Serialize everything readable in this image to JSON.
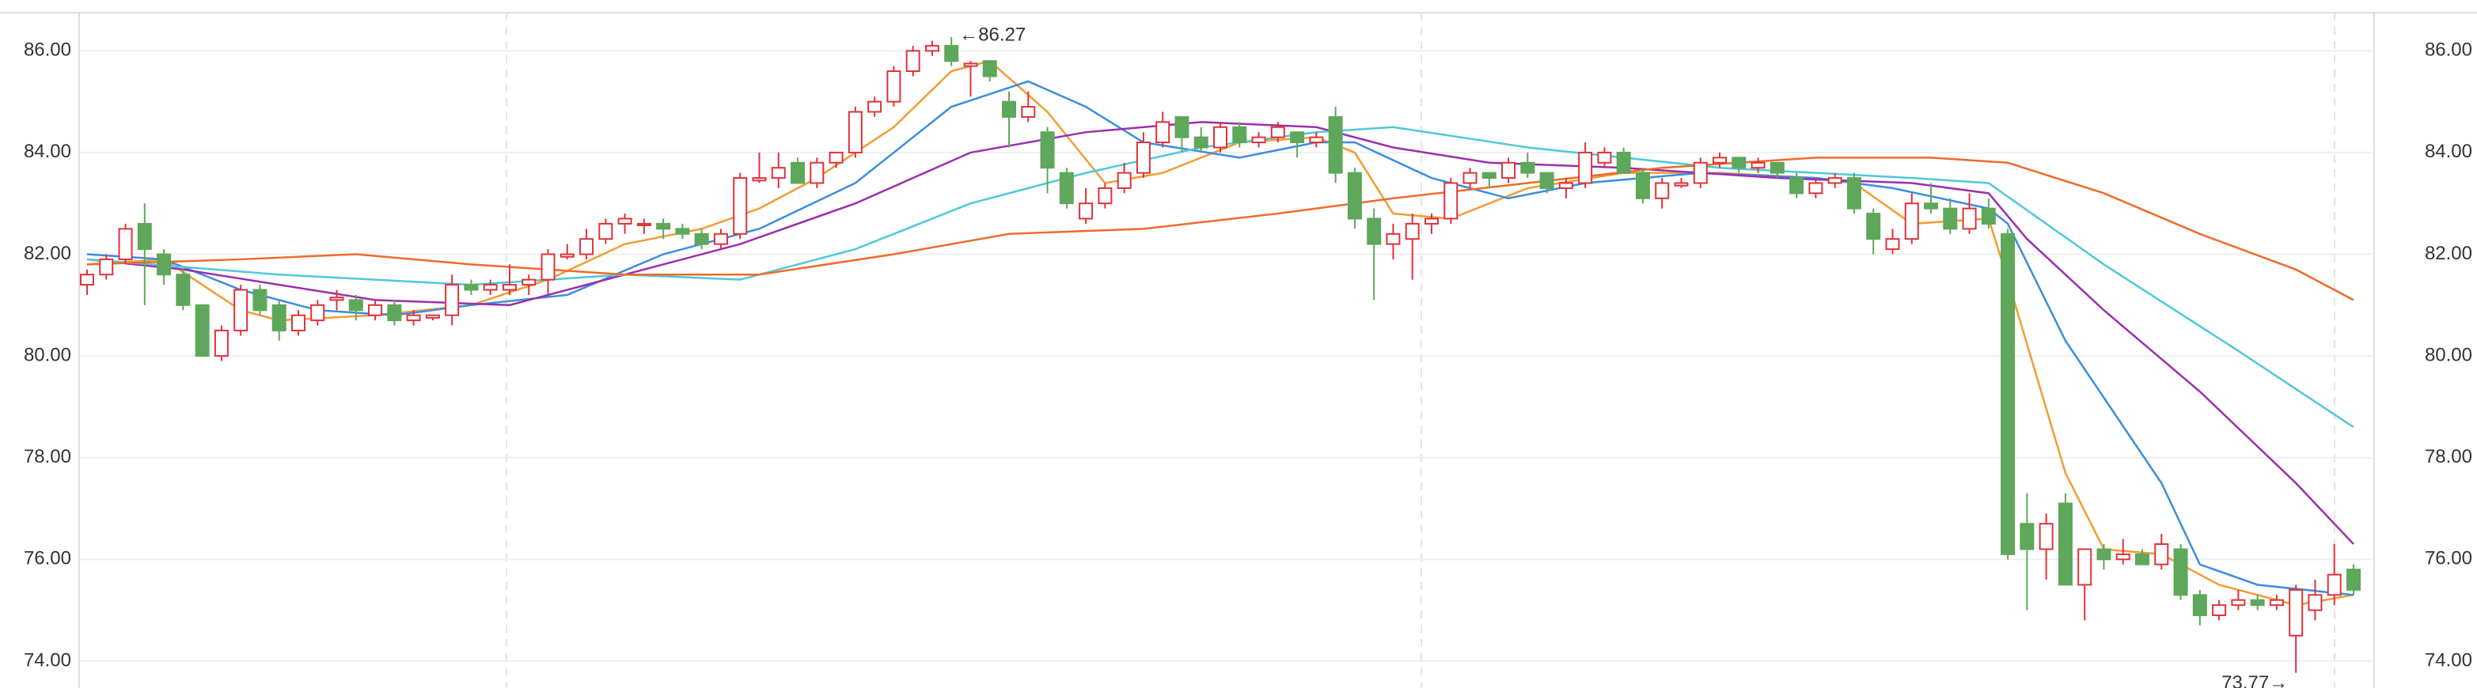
{
  "chart_data": {
    "type": "candlestick",
    "ylim": [
      73.47,
      87.0
    ],
    "yticks": [
      {
        "value": 74,
        "label": "74.00"
      },
      {
        "value": 76,
        "label": "76.00"
      },
      {
        "value": 78,
        "label": "78.00"
      },
      {
        "value": 80,
        "label": "80.00"
      },
      {
        "value": 82,
        "label": "82.00"
      },
      {
        "value": 84,
        "label": "84.00"
      },
      {
        "value": 86,
        "label": "86.00"
      }
    ],
    "grid": true,
    "up_color": "#e0323a",
    "down_color": "#5fa75a",
    "ohlc": [
      [
        81.4,
        81.7,
        81.2,
        81.6
      ],
      [
        81.6,
        82.0,
        81.5,
        81.9
      ],
      [
        81.9,
        82.6,
        81.8,
        82.5
      ],
      [
        82.6,
        83.0,
        81.0,
        82.1
      ],
      [
        82.0,
        82.1,
        81.4,
        81.6
      ],
      [
        81.6,
        81.7,
        80.9,
        81.0
      ],
      [
        81.0,
        81.0,
        80.0,
        80.0
      ],
      [
        80.0,
        80.6,
        79.9,
        80.5
      ],
      [
        80.5,
        81.4,
        80.4,
        81.3
      ],
      [
        81.3,
        81.4,
        80.8,
        80.9
      ],
      [
        81.0,
        81.1,
        80.3,
        80.5
      ],
      [
        80.5,
        80.9,
        80.4,
        80.8
      ],
      [
        80.7,
        81.1,
        80.6,
        81.0
      ],
      [
        81.1,
        81.3,
        80.9,
        81.15
      ],
      [
        81.1,
        81.2,
        80.7,
        80.9
      ],
      [
        80.8,
        81.1,
        80.7,
        81.0
      ],
      [
        81.0,
        81.1,
        80.6,
        80.7
      ],
      [
        80.7,
        80.9,
        80.6,
        80.8
      ],
      [
        80.75,
        80.8,
        80.7,
        80.8
      ],
      [
        80.8,
        81.6,
        80.6,
        81.4
      ],
      [
        81.4,
        81.5,
        81.2,
        81.3
      ],
      [
        81.3,
        81.5,
        81.2,
        81.4
      ],
      [
        81.3,
        81.8,
        81.2,
        81.4
      ],
      [
        81.4,
        81.6,
        81.2,
        81.5
      ],
      [
        81.5,
        82.1,
        81.2,
        82.0
      ],
      [
        81.95,
        82.2,
        81.9,
        82.0
      ],
      [
        82.0,
        82.5,
        81.9,
        82.3
      ],
      [
        82.3,
        82.7,
        82.2,
        82.6
      ],
      [
        82.6,
        82.8,
        82.4,
        82.7
      ],
      [
        82.6,
        82.7,
        82.4,
        82.6
      ],
      [
        82.6,
        82.7,
        82.3,
        82.5
      ],
      [
        82.5,
        82.6,
        82.3,
        82.4
      ],
      [
        82.4,
        82.5,
        82.1,
        82.2
      ],
      [
        82.2,
        82.5,
        82.1,
        82.4
      ],
      [
        82.4,
        83.6,
        82.3,
        83.5
      ],
      [
        83.45,
        84.0,
        83.4,
        83.5
      ],
      [
        83.5,
        84.0,
        83.3,
        83.7
      ],
      [
        83.8,
        83.9,
        83.4,
        83.4
      ],
      [
        83.4,
        83.9,
        83.3,
        83.8
      ],
      [
        83.8,
        84.0,
        83.7,
        84.0
      ],
      [
        84.0,
        84.9,
        83.9,
        84.8
      ],
      [
        84.8,
        85.1,
        84.7,
        85.0
      ],
      [
        85.0,
        85.7,
        84.9,
        85.6
      ],
      [
        85.6,
        86.1,
        85.5,
        86.0
      ],
      [
        86.0,
        86.2,
        85.9,
        86.1
      ],
      [
        86.1,
        86.27,
        85.7,
        85.8
      ],
      [
        85.7,
        85.8,
        85.1,
        85.75
      ],
      [
        85.8,
        85.8,
        85.4,
        85.5
      ],
      [
        85.0,
        85.2,
        84.1,
        84.7
      ],
      [
        84.7,
        85.2,
        84.6,
        84.9
      ],
      [
        84.4,
        84.5,
        83.2,
        83.7
      ],
      [
        83.6,
        83.7,
        82.9,
        83.0
      ],
      [
        82.7,
        83.3,
        82.6,
        83.0
      ],
      [
        83.0,
        83.4,
        82.9,
        83.3
      ],
      [
        83.3,
        83.8,
        83.2,
        83.6
      ],
      [
        83.6,
        84.4,
        83.5,
        84.2
      ],
      [
        84.2,
        84.8,
        84.1,
        84.6
      ],
      [
        84.7,
        84.7,
        84.0,
        84.3
      ],
      [
        84.3,
        84.5,
        84.0,
        84.1
      ],
      [
        84.1,
        84.6,
        84.0,
        84.5
      ],
      [
        84.5,
        84.6,
        84.1,
        84.2
      ],
      [
        84.2,
        84.4,
        84.1,
        84.3
      ],
      [
        84.3,
        84.6,
        84.2,
        84.5
      ],
      [
        84.4,
        84.4,
        83.9,
        84.2
      ],
      [
        84.2,
        84.4,
        84.1,
        84.3
      ],
      [
        84.7,
        84.9,
        83.4,
        83.6
      ],
      [
        83.6,
        83.7,
        82.5,
        82.7
      ],
      [
        82.7,
        82.9,
        81.1,
        82.2
      ],
      [
        82.2,
        82.6,
        81.9,
        82.4
      ],
      [
        82.3,
        82.8,
        81.5,
        82.6
      ],
      [
        82.6,
        82.8,
        82.4,
        82.7
      ],
      [
        82.7,
        83.5,
        82.6,
        83.4
      ],
      [
        83.4,
        83.7,
        83.3,
        83.6
      ],
      [
        83.6,
        83.6,
        83.3,
        83.5
      ],
      [
        83.5,
        83.9,
        83.4,
        83.8
      ],
      [
        83.8,
        84.0,
        83.5,
        83.6
      ],
      [
        83.6,
        83.6,
        83.2,
        83.3
      ],
      [
        83.3,
        83.5,
        83.1,
        83.4
      ],
      [
        83.4,
        84.2,
        83.3,
        84.0
      ],
      [
        83.8,
        84.1,
        83.7,
        84.0
      ],
      [
        84.0,
        84.1,
        83.6,
        83.6
      ],
      [
        83.6,
        83.7,
        83.0,
        83.1
      ],
      [
        83.1,
        83.5,
        82.9,
        83.4
      ],
      [
        83.35,
        83.5,
        83.3,
        83.4
      ],
      [
        83.4,
        83.9,
        83.3,
        83.8
      ],
      [
        83.8,
        84.0,
        83.7,
        83.9
      ],
      [
        83.9,
        83.9,
        83.6,
        83.7
      ],
      [
        83.7,
        83.9,
        83.6,
        83.8
      ],
      [
        83.8,
        83.8,
        83.5,
        83.6
      ],
      [
        83.5,
        83.6,
        83.1,
        83.2
      ],
      [
        83.2,
        83.5,
        83.1,
        83.4
      ],
      [
        83.4,
        83.6,
        83.3,
        83.5
      ],
      [
        83.5,
        83.6,
        82.8,
        82.9
      ],
      [
        82.8,
        82.9,
        82.0,
        82.3
      ],
      [
        82.1,
        82.5,
        82.0,
        82.3
      ],
      [
        82.3,
        83.2,
        82.2,
        83.0
      ],
      [
        83.0,
        83.4,
        82.8,
        82.9
      ],
      [
        82.9,
        83.1,
        82.4,
        82.5
      ],
      [
        82.5,
        83.2,
        82.4,
        82.9
      ],
      [
        82.9,
        83.1,
        82.5,
        82.6
      ],
      [
        82.4,
        82.5,
        76.0,
        76.1
      ],
      [
        76.7,
        77.3,
        75.0,
        76.2
      ],
      [
        76.2,
        76.9,
        75.6,
        76.7
      ],
      [
        77.1,
        77.3,
        75.5,
        75.5
      ],
      [
        75.5,
        76.2,
        74.8,
        76.2
      ],
      [
        76.2,
        76.3,
        75.8,
        76.0
      ],
      [
        76.0,
        76.4,
        75.9,
        76.1
      ],
      [
        76.1,
        76.2,
        75.9,
        75.9
      ],
      [
        75.9,
        76.5,
        75.8,
        76.3
      ],
      [
        76.2,
        76.3,
        75.2,
        75.3
      ],
      [
        75.3,
        75.4,
        74.7,
        74.9
      ],
      [
        74.9,
        75.2,
        74.8,
        75.1
      ],
      [
        75.1,
        75.4,
        75.0,
        75.2
      ],
      [
        75.2,
        75.3,
        75.0,
        75.1
      ],
      [
        75.1,
        75.3,
        75.0,
        75.2
      ],
      [
        74.5,
        75.5,
        73.77,
        75.4
      ],
      [
        75.0,
        75.6,
        74.8,
        75.3
      ],
      [
        75.3,
        76.3,
        75.1,
        75.7
      ],
      [
        75.8,
        75.9,
        75.3,
        75.4
      ]
    ],
    "lines": [
      {
        "color": "#f39c34",
        "x": [
          0,
          4,
          8,
          10,
          15,
          20,
          24,
          28,
          32,
          35,
          38,
          42,
          45,
          47,
          50,
          53,
          56,
          60,
          64,
          66,
          68,
          71,
          75,
          80,
          85,
          90,
          92,
          95,
          99,
          100,
          103,
          105,
          108,
          111,
          115,
          118
        ],
        "values": [
          81.8,
          81.9,
          80.9,
          80.7,
          80.8,
          81.0,
          81.5,
          82.2,
          82.5,
          82.9,
          83.5,
          84.5,
          85.6,
          85.8,
          84.8,
          83.4,
          83.6,
          84.2,
          84.3,
          84.0,
          82.8,
          82.7,
          83.3,
          83.6,
          83.6,
          83.5,
          83.4,
          82.6,
          82.7,
          81.5,
          77.7,
          76.2,
          76.1,
          75.5,
          75.1,
          75.3
        ]
      },
      {
        "color": "#3b8de0",
        "x": [
          0,
          4,
          8,
          12,
          16,
          20,
          25,
          30,
          35,
          40,
          45,
          49,
          52,
          55,
          60,
          64,
          66,
          70,
          74,
          78,
          84,
          90,
          94,
          99,
          100,
          103,
          108,
          110,
          113,
          118
        ],
        "values": [
          82.0,
          81.9,
          81.3,
          80.9,
          80.8,
          81.0,
          81.2,
          82.0,
          82.5,
          83.4,
          84.9,
          85.4,
          84.9,
          84.2,
          83.9,
          84.2,
          84.2,
          83.5,
          83.1,
          83.4,
          83.6,
          83.5,
          83.3,
          82.9,
          82.6,
          80.3,
          77.5,
          75.9,
          75.5,
          75.3
        ]
      },
      {
        "color": "#9b2fae",
        "x": [
          0,
          5,
          10,
          15,
          22,
          28,
          34,
          40,
          46,
          52,
          58,
          64,
          68,
          73,
          80,
          88,
          95,
          99,
          101,
          105,
          110,
          115,
          118
        ],
        "values": [
          81.9,
          81.7,
          81.4,
          81.1,
          81.0,
          81.6,
          82.2,
          83.0,
          84.0,
          84.4,
          84.6,
          84.5,
          84.1,
          83.8,
          83.7,
          83.5,
          83.4,
          83.2,
          82.3,
          80.9,
          79.3,
          77.5,
          76.3
        ]
      },
      {
        "color": "#4fc8d8",
        "x": [
          0,
          10,
          20,
          28,
          34,
          40,
          46,
          52,
          58,
          64,
          68,
          75,
          85,
          95,
          99,
          105,
          112,
          118
        ],
        "values": [
          81.9,
          81.6,
          81.4,
          81.6,
          81.5,
          82.1,
          83.0,
          83.6,
          84.1,
          84.4,
          84.5,
          84.1,
          83.7,
          83.5,
          83.4,
          81.8,
          80.1,
          78.6
        ]
      },
      {
        "color": "#f06a2a",
        "x": [
          0,
          8,
          14,
          20,
          28,
          35,
          42,
          48,
          55,
          62,
          68,
          75,
          82,
          90,
          96,
          100,
          105,
          110,
          115,
          118
        ],
        "values": [
          81.8,
          81.9,
          82.0,
          81.8,
          81.6,
          81.6,
          82.0,
          82.4,
          82.5,
          82.8,
          83.1,
          83.4,
          83.7,
          83.9,
          83.9,
          83.8,
          83.2,
          82.4,
          81.7,
          81.1
        ]
      }
    ],
    "annotations": [
      {
        "text": "←86.27",
        "x": 45,
        "y": 86.27
      },
      {
        "text": "73.77→",
        "x": 115,
        "y": 73.77
      }
    ]
  }
}
